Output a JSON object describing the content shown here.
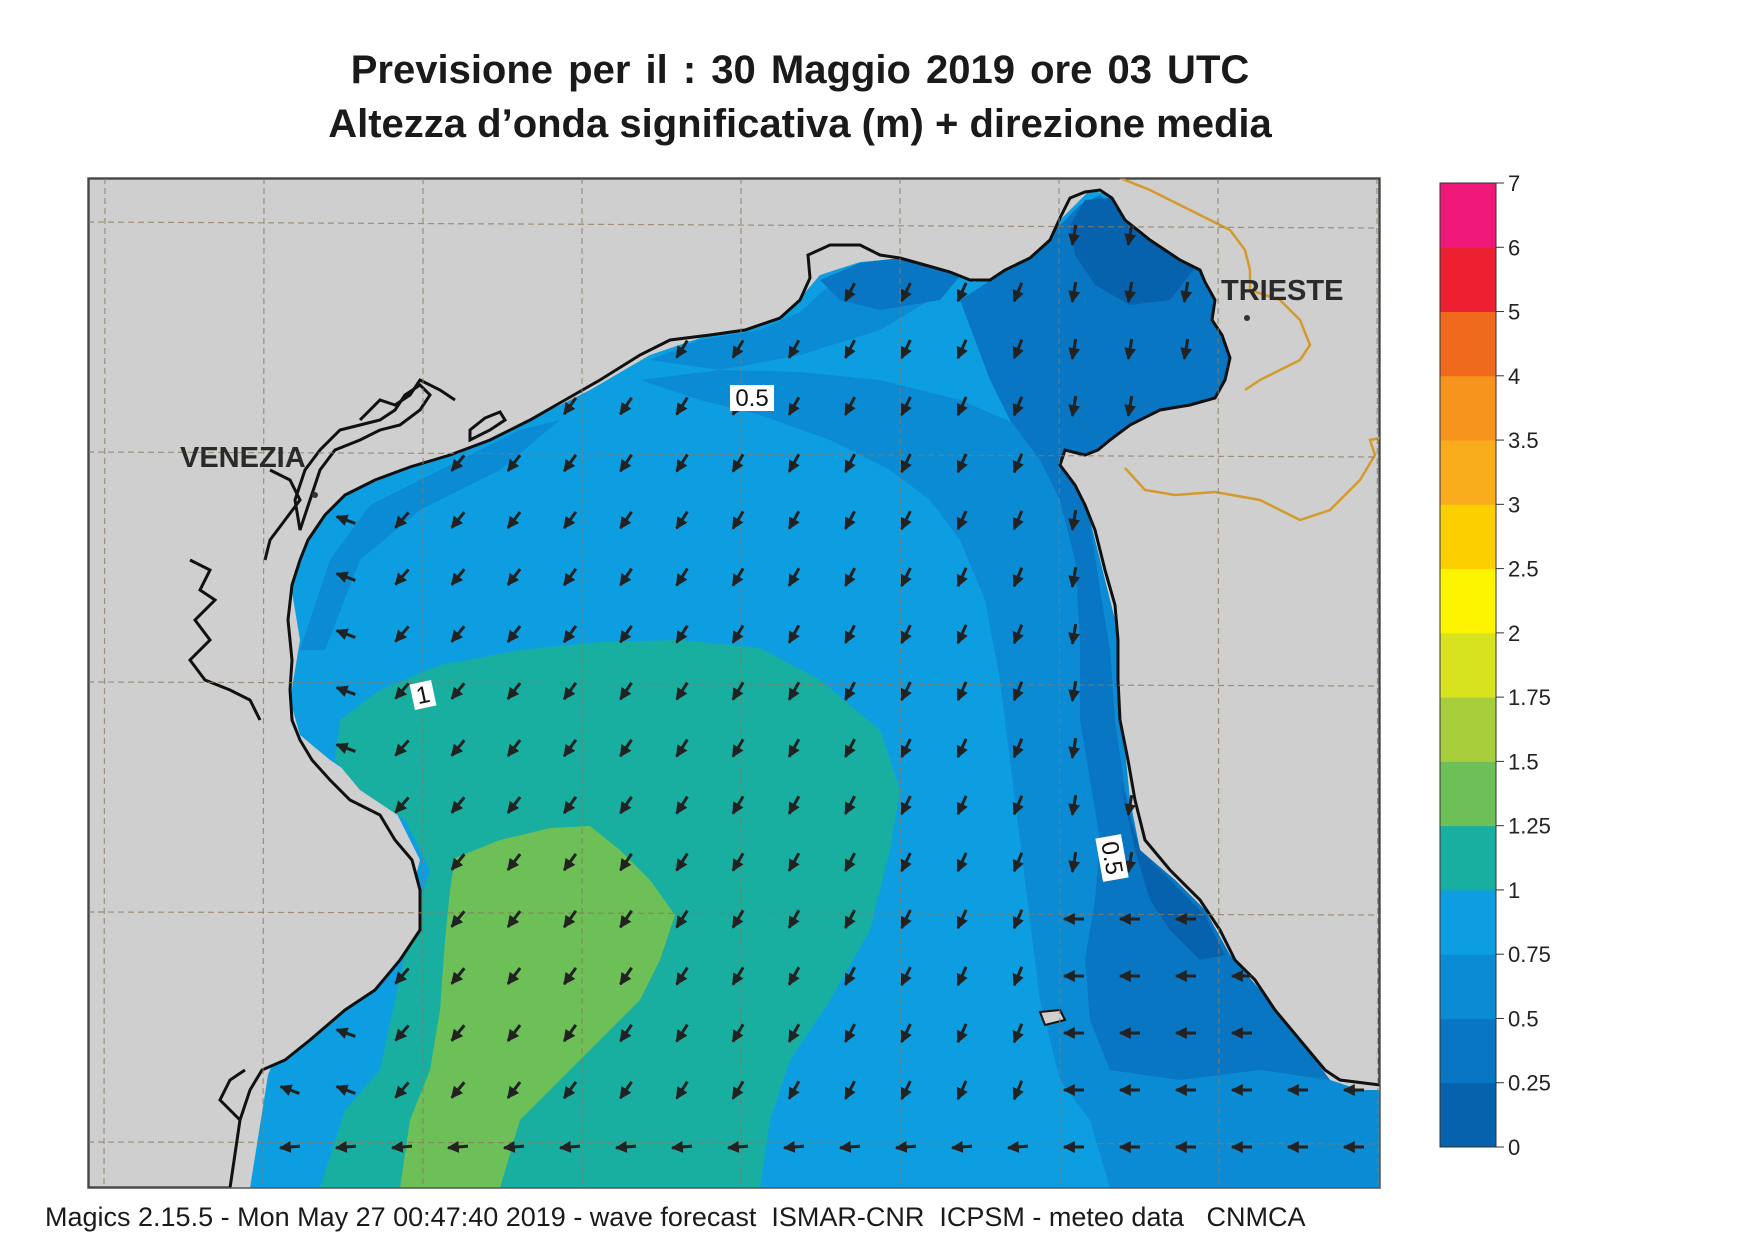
{
  "title_line1": "Previsione per il  :  30   Maggio  2019   ore 03 UTC",
  "title_line2": "Altezza d’onda significativa (m) + direzione media",
  "footer": "Magics 2.15.5 - Mon May 27 00:47:40 2019 - wave forecast  ISMAR-CNR  ICPSM - meteo data   CNMCA",
  "places": {
    "venezia": "VENEZIA",
    "trieste": "TRIESTE"
  },
  "contour_labels": [
    "0.5",
    "1",
    "0.5"
  ],
  "colorbar": {
    "tick_labels": [
      "7",
      "6",
      "5",
      "4",
      "3.5",
      "3",
      "2.5",
      "2",
      "1.75",
      "1.5",
      "1.25",
      "1",
      "0.75",
      "0.5",
      "0.25",
      "0"
    ],
    "colors": [
      "#f01878",
      "#ec2030",
      "#f06a1e",
      "#f7941d",
      "#f9ad1d",
      "#fcd000",
      "#fdf400",
      "#d7e31e",
      "#a8cd3a",
      "#6dbf57",
      "#18aea0",
      "#0d9ee1",
      "#0a8bd4",
      "#0876c2",
      "#0762ae"
    ]
  },
  "colors": {
    "land": "#cfcfcf",
    "sea_000_025": "#0762ae",
    "sea_025_050": "#0876c2",
    "sea_050_075": "#0a8bd4",
    "sea_075_100": "#0d9ee1",
    "sea_100_125": "#18aea0",
    "sea_125_150": "#6dbf57",
    "arrow": "#222222",
    "border": "#d39a2c"
  },
  "arrow_field": {
    "description_hidden": true,
    "direction": "south-west to west"
  }
}
